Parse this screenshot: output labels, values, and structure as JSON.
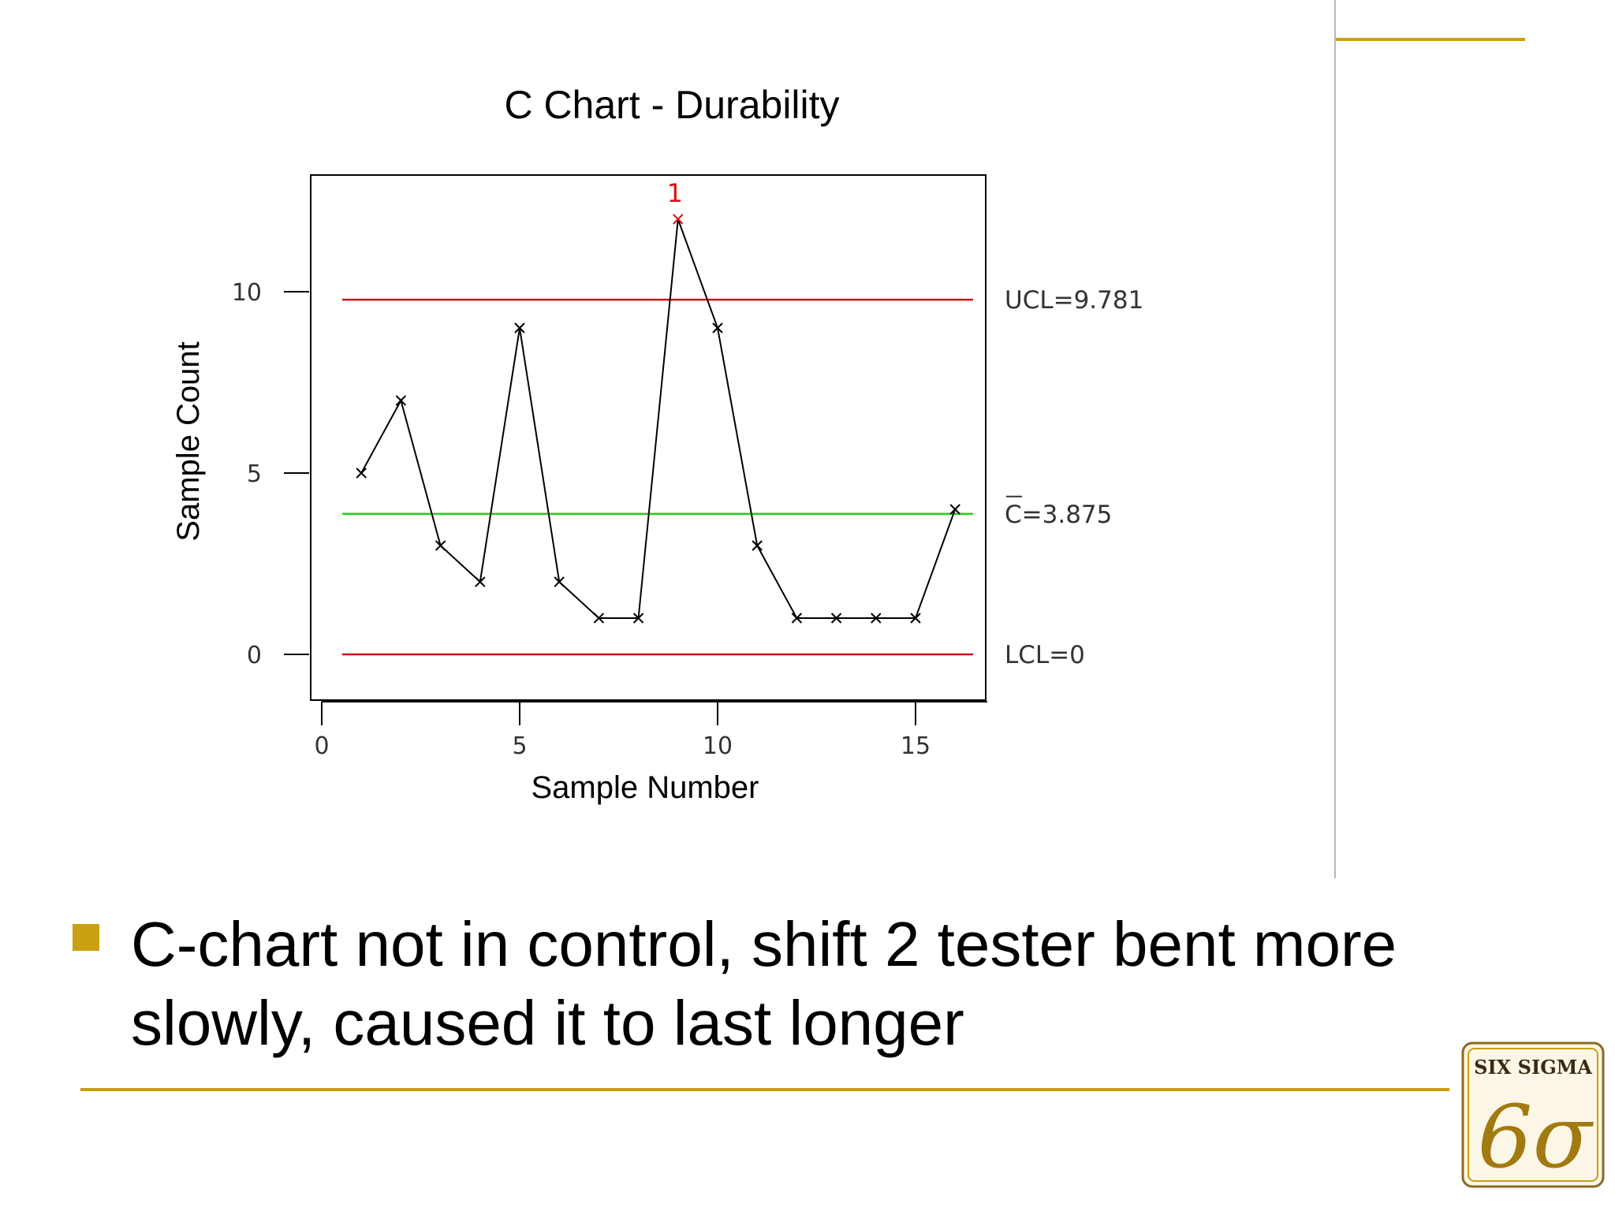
{
  "slide": {
    "bullet_text": "C-chart not in control, shift 2 tester bent more slowly, caused it to last longer",
    "logo_text": "SIX SIGMA",
    "logo_mark": "6σ",
    "accent_color": "#c9a010"
  },
  "chart_data": {
    "type": "line",
    "title": "C Chart - Durability",
    "xlabel": "Sample Number",
    "ylabel": "Sample Count",
    "x": [
      1,
      2,
      3,
      4,
      5,
      6,
      7,
      8,
      9,
      10,
      11,
      12,
      13,
      14,
      15,
      16
    ],
    "values": [
      5,
      7,
      3,
      2,
      9,
      2,
      1,
      1,
      12,
      9,
      3,
      1,
      1,
      1,
      1,
      4
    ],
    "xlim": [
      0,
      17
    ],
    "ylim": [
      -1.2,
      13.2
    ],
    "xticks": [
      0,
      5,
      10,
      15
    ],
    "yticks": [
      0,
      5,
      10
    ],
    "control_lines": [
      {
        "name": "UCL",
        "value": 9.781,
        "label": "UCL=9.781",
        "color": "#d01010"
      },
      {
        "name": "C-bar",
        "value": 3.875,
        "label": "C=3.875",
        "color": "#20d020"
      },
      {
        "name": "LCL",
        "value": 0,
        "label": "LCL=0",
        "color": "#d01010"
      }
    ],
    "flagged_points": [
      {
        "x": 9,
        "y": 12,
        "label": "1",
        "color": "#e01010"
      }
    ],
    "marker": "x",
    "line_color": "#000000",
    "grid": false
  }
}
